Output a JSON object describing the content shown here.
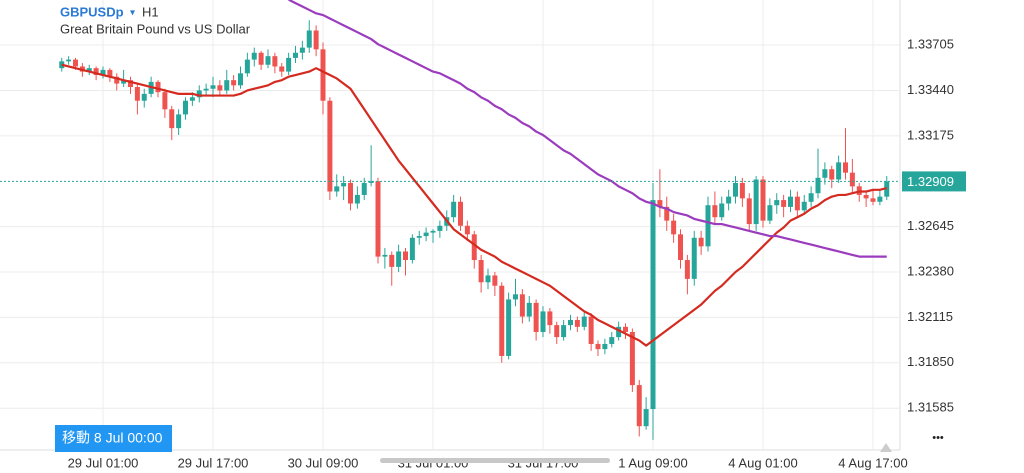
{
  "header": {
    "symbol": "GBPUSDp",
    "dropdown": "▾",
    "timeframe": "H1",
    "description": "Great Britain Pound vs US Dollar"
  },
  "crosshair_label": "移動 8 Jul 00:00",
  "menu": "•••",
  "chart_data": {
    "type": "candlestick",
    "up_color": "#26a69a",
    "down_color": "#ef5350",
    "ylim": [
      1.31341,
      1.33968
    ],
    "yticks": [
      1.33705,
      {
        "value": 1.3344,
        "label": "1.33440"
      },
      1.33175,
      1.32645,
      {
        "value": 1.3238,
        "label": "1.32380"
      },
      1.32115,
      {
        "value": 1.3185,
        "label": "1.31850"
      },
      1.31585
    ],
    "current_price": 1.32909,
    "categories": [
      null,
      null,
      null,
      null,
      null,
      null,
      "29 Jul 01:00",
      null,
      null,
      null,
      null,
      null,
      null,
      null,
      null,
      null,
      null,
      null,
      null,
      null,
      null,
      null,
      "29 Jul 17:00",
      null,
      null,
      null,
      null,
      null,
      null,
      null,
      null,
      null,
      null,
      null,
      null,
      null,
      null,
      null,
      "30 Jul 09:00",
      null,
      null,
      null,
      null,
      null,
      null,
      null,
      null,
      null,
      null,
      null,
      null,
      null,
      null,
      null,
      "31 Jul 01:00",
      null,
      null,
      null,
      null,
      null,
      null,
      null,
      null,
      null,
      null,
      null,
      null,
      null,
      null,
      null,
      "31 Jul 17:00",
      null,
      null,
      null,
      null,
      null,
      null,
      null,
      null,
      null,
      null,
      null,
      null,
      null,
      null,
      null,
      "1 Aug 09:00",
      null,
      null,
      null,
      null,
      null,
      null,
      null,
      null,
      null,
      null,
      null,
      null,
      null,
      null,
      null,
      "4 Aug 01:00",
      null,
      null,
      null,
      null,
      null,
      null,
      null,
      null,
      null,
      null,
      null,
      null,
      null,
      null,
      null,
      "4 Aug 17:00",
      null,
      null
    ],
    "candles": [
      [
        1.3357,
        1.3363,
        1.3355,
        1.3361
      ],
      [
        1.3361,
        1.3364,
        1.3359,
        1.3362
      ],
      [
        1.3362,
        1.3363,
        1.3356,
        1.3358
      ],
      [
        1.3358,
        1.336,
        1.3352,
        1.3355
      ],
      [
        1.3355,
        1.3359,
        1.3353,
        1.3357
      ],
      [
        1.3357,
        1.3358,
        1.335,
        1.3353
      ],
      [
        1.3353,
        1.3358,
        1.3351,
        1.3356
      ],
      [
        1.3356,
        1.3357,
        1.3349,
        1.3352
      ],
      [
        1.3352,
        1.3354,
        1.3344,
        1.3348
      ],
      [
        1.3348,
        1.3356,
        1.3346,
        1.335
      ],
      [
        1.335,
        1.3352,
        1.3342,
        1.3346
      ],
      [
        1.3346,
        1.3348,
        1.333,
        1.3338
      ],
      [
        1.3338,
        1.3345,
        1.3334,
        1.3342
      ],
      [
        1.3342,
        1.3352,
        1.334,
        1.3349
      ],
      [
        1.3349,
        1.335,
        1.334,
        1.3343
      ],
      [
        1.3343,
        1.3345,
        1.3328,
        1.3333
      ],
      [
        1.3333,
        1.3335,
        1.3315,
        1.3322
      ],
      [
        1.3322,
        1.3333,
        1.3318,
        1.333
      ],
      [
        1.333,
        1.334,
        1.3327,
        1.3338
      ],
      [
        1.3338,
        1.3343,
        1.3335,
        1.334
      ],
      [
        1.334,
        1.3347,
        1.3337,
        1.3344
      ],
      [
        1.3344,
        1.3348,
        1.3341,
        1.3345
      ],
      [
        1.3345,
        1.3352,
        1.334,
        1.3347
      ],
      [
        1.3347,
        1.335,
        1.3341,
        1.3344
      ],
      [
        1.3344,
        1.3356,
        1.3342,
        1.335
      ],
      [
        1.335,
        1.3353,
        1.3344,
        1.3347
      ],
      [
        1.3347,
        1.3358,
        1.3345,
        1.3354
      ],
      [
        1.3354,
        1.3366,
        1.3352,
        1.3362
      ],
      [
        1.3362,
        1.3369,
        1.3358,
        1.3366
      ],
      [
        1.3366,
        1.3367,
        1.3356,
        1.3359
      ],
      [
        1.3359,
        1.3368,
        1.3357,
        1.3364
      ],
      [
        1.3364,
        1.3366,
        1.3354,
        1.3358
      ],
      [
        1.3358,
        1.336,
        1.3352,
        1.3355
      ],
      [
        1.3355,
        1.3366,
        1.3353,
        1.3363
      ],
      [
        1.3363,
        1.337,
        1.336,
        1.3366
      ],
      [
        1.3366,
        1.3373,
        1.3362,
        1.3369
      ],
      [
        1.3369,
        1.3385,
        1.3366,
        1.3379
      ],
      [
        1.3379,
        1.3382,
        1.3364,
        1.3368
      ],
      [
        1.3368,
        1.3372,
        1.333,
        1.3338
      ],
      [
        1.3338,
        1.334,
        1.328,
        1.3285
      ],
      [
        1.3285,
        1.3295,
        1.3282,
        1.3288
      ],
      [
        1.3288,
        1.3294,
        1.328,
        1.329
      ],
      [
        1.329,
        1.3292,
        1.3274,
        1.3278
      ],
      [
        1.3278,
        1.3288,
        1.3275,
        1.3283
      ],
      [
        1.3283,
        1.3293,
        1.328,
        1.329
      ],
      [
        1.329,
        1.3312,
        1.3288,
        1.3291
      ],
      [
        1.3291,
        1.3293,
        1.3243,
        1.3247
      ],
      [
        1.3247,
        1.3252,
        1.324,
        1.3248
      ],
      [
        1.3248,
        1.325,
        1.323,
        1.3241
      ],
      [
        1.3241,
        1.3254,
        1.3238,
        1.325
      ],
      [
        1.325,
        1.3252,
        1.3236,
        1.3245
      ],
      [
        1.3245,
        1.326,
        1.3243,
        1.3258
      ],
      [
        1.3258,
        1.3262,
        1.3254,
        1.3259
      ],
      [
        1.3259,
        1.3264,
        1.3256,
        1.3261
      ],
      [
        1.3261,
        1.3263,
        1.3255,
        1.3262
      ],
      [
        1.3262,
        1.3268,
        1.3258,
        1.3265
      ],
      [
        1.3265,
        1.3274,
        1.3262,
        1.327
      ],
      [
        1.327,
        1.3283,
        1.3267,
        1.3279
      ],
      [
        1.3279,
        1.3282,
        1.3262,
        1.3265
      ],
      [
        1.3265,
        1.3268,
        1.3256,
        1.326
      ],
      [
        1.326,
        1.3262,
        1.324,
        1.3245
      ],
      [
        1.3245,
        1.3248,
        1.3226,
        1.3232
      ],
      [
        1.3232,
        1.324,
        1.3228,
        1.3236
      ],
      [
        1.3236,
        1.3238,
        1.3224,
        1.323
      ],
      [
        1.323,
        1.3232,
        1.3185,
        1.3189
      ],
      [
        1.3189,
        1.3226,
        1.3187,
        1.3222
      ],
      [
        1.3222,
        1.3234,
        1.3218,
        1.3225
      ],
      [
        1.3225,
        1.3228,
        1.3208,
        1.3212
      ],
      [
        1.3212,
        1.3224,
        1.3209,
        1.322
      ],
      [
        1.322,
        1.3222,
        1.3198,
        1.3203
      ],
      [
        1.3203,
        1.3218,
        1.32,
        1.3215
      ],
      [
        1.3215,
        1.3217,
        1.3202,
        1.3207
      ],
      [
        1.3207,
        1.3209,
        1.3196,
        1.32
      ],
      [
        1.32,
        1.321,
        1.3198,
        1.3207
      ],
      [
        1.3207,
        1.3213,
        1.3204,
        1.321
      ],
      [
        1.321,
        1.3212,
        1.3203,
        1.3206
      ],
      [
        1.3206,
        1.3215,
        1.3204,
        1.3212
      ],
      [
        1.3212,
        1.3214,
        1.3192,
        1.3196
      ],
      [
        1.3196,
        1.3198,
        1.3189,
        1.3193
      ],
      [
        1.3193,
        1.3199,
        1.319,
        1.3196
      ],
      [
        1.3196,
        1.3203,
        1.3194,
        1.32
      ],
      [
        1.32,
        1.3209,
        1.3198,
        1.3206
      ],
      [
        1.3206,
        1.3208,
        1.3199,
        1.3203
      ],
      [
        1.3203,
        1.3205,
        1.3168,
        1.3172
      ],
      [
        1.3172,
        1.3175,
        1.3142,
        1.3148
      ],
      [
        1.3148,
        1.3165,
        1.3146,
        1.3158
      ],
      [
        1.3158,
        1.329,
        1.314,
        1.328
      ],
      [
        1.328,
        1.3298,
        1.327,
        1.3276
      ],
      [
        1.3276,
        1.3282,
        1.3262,
        1.3268
      ],
      [
        1.3268,
        1.3272,
        1.3255,
        1.326
      ],
      [
        1.326,
        1.3263,
        1.324,
        1.3245
      ],
      [
        1.3245,
        1.3248,
        1.3225,
        1.3234
      ],
      [
        1.3234,
        1.3262,
        1.323,
        1.3258
      ],
      [
        1.3258,
        1.3262,
        1.3248,
        1.3253
      ],
      [
        1.3253,
        1.3282,
        1.325,
        1.3277
      ],
      [
        1.3277,
        1.3285,
        1.3266,
        1.327
      ],
      [
        1.327,
        1.3282,
        1.3268,
        1.3278
      ],
      [
        1.3278,
        1.3286,
        1.3274,
        1.3282
      ],
      [
        1.3282,
        1.3294,
        1.3278,
        1.329
      ],
      [
        1.329,
        1.3293,
        1.3276,
        1.3281
      ],
      [
        1.3281,
        1.3284,
        1.3262,
        1.3266
      ],
      [
        1.3266,
        1.3294,
        1.3262,
        1.3292
      ],
      [
        1.3292,
        1.3294,
        1.3264,
        1.3268
      ],
      [
        1.3268,
        1.3281,
        1.3266,
        1.3277
      ],
      [
        1.3277,
        1.3284,
        1.3272,
        1.328
      ],
      [
        1.328,
        1.3283,
        1.327,
        1.3276
      ],
      [
        1.3276,
        1.3286,
        1.3273,
        1.3282
      ],
      [
        1.3282,
        1.3285,
        1.327,
        1.3274
      ],
      [
        1.3274,
        1.3283,
        1.3272,
        1.3279
      ],
      [
        1.3279,
        1.3288,
        1.3276,
        1.3284
      ],
      [
        1.3284,
        1.331,
        1.3281,
        1.3293
      ],
      [
        1.3293,
        1.3302,
        1.3289,
        1.3298
      ],
      [
        1.3298,
        1.33,
        1.3287,
        1.3292
      ],
      [
        1.3292,
        1.3306,
        1.329,
        1.3302
      ],
      [
        1.3302,
        1.3322,
        1.3292,
        1.3296
      ],
      [
        1.3296,
        1.3304,
        1.3284,
        1.3288
      ],
      [
        1.3288,
        1.329,
        1.3279,
        1.3283
      ],
      [
        1.3283,
        1.3285,
        1.3276,
        1.3281
      ],
      [
        1.3281,
        1.3286,
        1.3277,
        1.3279
      ],
      [
        1.3279,
        1.3286,
        1.3277,
        1.3282
      ],
      [
        1.3282,
        1.3294,
        1.328,
        1.32909
      ]
    ],
    "lines": [
      {
        "color": "#d42a20",
        "values": [
          1.3359,
          1.3358,
          1.3357,
          1.3356,
          1.3355,
          1.3354,
          1.3353,
          1.3352,
          1.3351,
          1.335,
          1.3349,
          1.3348,
          1.3347,
          1.3346,
          1.3345,
          1.3344,
          1.3343,
          1.3342,
          1.3342,
          1.3342,
          1.3341,
          1.3341,
          1.3341,
          1.3341,
          1.3341,
          1.3341,
          1.3342,
          1.3344,
          1.3345,
          1.3346,
          1.3347,
          1.3349,
          1.335,
          1.3352,
          1.3353,
          1.3354,
          1.3355,
          1.3357,
          1.3355,
          1.3353,
          1.3351,
          1.3348,
          1.3345,
          1.3339,
          1.3333,
          1.3327,
          1.3321,
          1.3315,
          1.3309,
          1.3303,
          1.3298,
          1.3293,
          1.3288,
          1.3283,
          1.3278,
          1.3273,
          1.3268,
          1.3263,
          1.326,
          1.3257,
          1.3254,
          1.3251,
          1.3249,
          1.3247,
          1.3244,
          1.3242,
          1.324,
          1.3238,
          1.3236,
          1.3234,
          1.3232,
          1.323,
          1.3227,
          1.3224,
          1.3221,
          1.3218,
          1.3215,
          1.3213,
          1.321,
          1.3208,
          1.3206,
          1.3204,
          1.3202,
          1.32,
          1.3198,
          1.3195,
          1.3198,
          1.3201,
          1.3204,
          1.3207,
          1.321,
          1.3213,
          1.3216,
          1.3219,
          1.3223,
          1.3227,
          1.323,
          1.3234,
          1.3238,
          1.3241,
          1.3245,
          1.3249,
          1.3253,
          1.3257,
          1.3261,
          1.3264,
          1.3268,
          1.327,
          1.3272,
          1.3275,
          1.3277,
          1.328,
          1.3282,
          1.3283,
          1.3283,
          1.3284,
          1.3285,
          1.3285,
          1.3286,
          1.3286,
          1.3287
        ]
      },
      {
        "color": "#9b3cbe",
        "values": [
          null,
          null,
          null,
          null,
          null,
          null,
          null,
          null,
          null,
          null,
          null,
          null,
          null,
          null,
          null,
          null,
          null,
          null,
          null,
          null,
          null,
          null,
          null,
          null,
          null,
          null,
          null,
          null,
          null,
          null,
          null,
          null,
          null,
          1.3397,
          1.3395,
          1.3393,
          1.3391,
          1.3389,
          1.3388,
          1.3386,
          1.3384,
          1.3382,
          1.338,
          1.3378,
          1.3376,
          1.3374,
          1.3371,
          1.3369,
          1.3367,
          1.3365,
          1.3363,
          1.3361,
          1.3359,
          1.3357,
          1.3355,
          1.3354,
          1.3352,
          1.335,
          1.3348,
          1.3345,
          1.3343,
          1.334,
          1.3338,
          1.3335,
          1.3333,
          1.333,
          1.3328,
          1.3325,
          1.3323,
          1.332,
          1.3318,
          1.3315,
          1.3312,
          1.3309,
          1.3307,
          1.3304,
          1.3301,
          1.3298,
          1.3295,
          1.3293,
          1.3291,
          1.3288,
          1.3286,
          1.3284,
          1.3281,
          1.3279,
          1.3278,
          1.3276,
          1.3275,
          1.3273,
          1.3272,
          1.3271,
          1.3269,
          1.3268,
          1.3267,
          1.3266,
          1.3266,
          1.3265,
          1.3264,
          1.3263,
          1.3262,
          1.3261,
          1.326,
          1.3259,
          1.3259,
          1.3258,
          1.3257,
          1.3256,
          1.3255,
          1.3254,
          1.3253,
          1.3252,
          1.3251,
          1.325,
          1.3249,
          1.3248,
          1.3247,
          1.3247,
          1.3247,
          1.3247,
          1.3247
        ]
      }
    ]
  }
}
